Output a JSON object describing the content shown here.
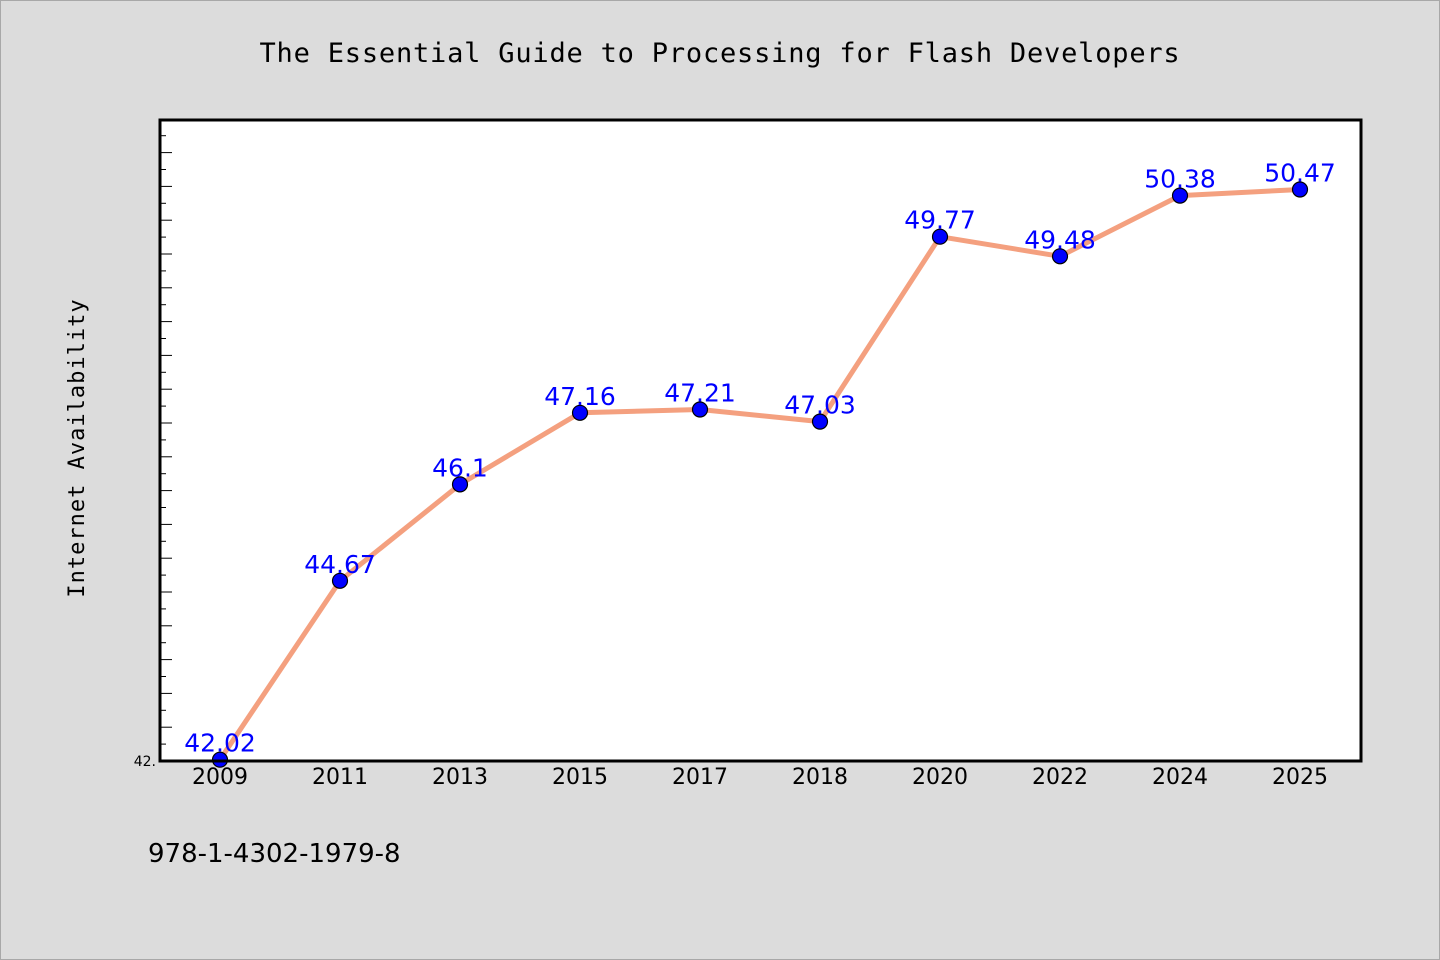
{
  "chart_data": {
    "type": "line",
    "title": "The Essential Guide to Processing for Flash Developers",
    "xlabel": "",
    "ylabel": "Internet Availability",
    "categories": [
      "2009",
      "2011",
      "2013",
      "2015",
      "2017",
      "2018",
      "2020",
      "2022",
      "2024",
      "2025"
    ],
    "series": [
      {
        "values": [
          42.02,
          44.67,
          46.1,
          47.16,
          47.21,
          47.03,
          49.77,
          49.48,
          50.38,
          50.47
        ],
        "data_labels": [
          "42.02",
          "44.67",
          "46.1",
          "47.16",
          "47.21",
          "47.03",
          "49.77",
          "49.48",
          "50.38",
          "50.47"
        ]
      }
    ],
    "ylim": [
      42.0,
      51.5
    ],
    "ytick_labels": [
      "42."
    ],
    "grid": false,
    "legend": "none",
    "colors": {
      "line": "#f4a07f",
      "marker": "#0000ff",
      "data_label": "#0000ff",
      "plot_background": "#ffffff",
      "page_background": "#dcdcdc"
    }
  },
  "footnote": "978-1-4302-1979-8"
}
